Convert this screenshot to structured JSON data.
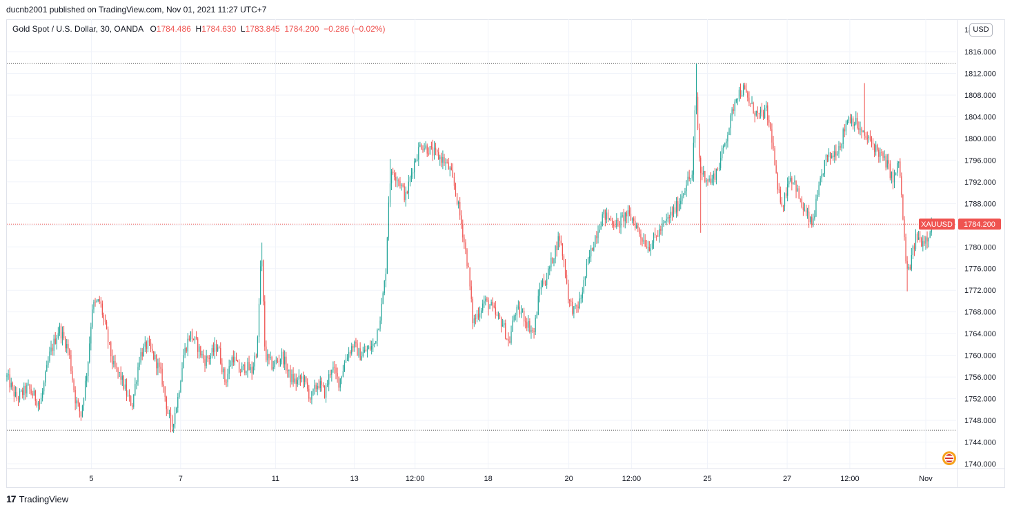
{
  "header": {
    "publisher": "ducnb2001 published on TradingView.com, Nov 01, 2021 11:27 UTC+7"
  },
  "legend": {
    "symbol": "Gold Spot / U.S. Dollar, 30, OANDA",
    "open_label": "O",
    "open": "1784.486",
    "high_label": "H",
    "high": "1784.630",
    "low_label": "L",
    "low": "1783.845",
    "close": "1784.200",
    "change": "−0.286 (−0.02%)"
  },
  "currency_badge": "USD",
  "price_tag": {
    "symbol": "XAUUSD",
    "price": "1784.200"
  },
  "footer": {
    "brand": "TradingView",
    "brand_mark": "17"
  },
  "colors": {
    "up": "#26a69a",
    "down": "#ef5350",
    "grid": "#f0f3fa",
    "axis_text": "#131722"
  },
  "chart_data": {
    "type": "candlestick",
    "title": "Gold Spot / U.S. Dollar, 30, OANDA",
    "ylim": [
      1738,
      1820
    ],
    "y_ticks": [
      1740,
      1744,
      1748,
      1752,
      1756,
      1760,
      1764,
      1768,
      1772,
      1776,
      1780,
      1784,
      1788,
      1792,
      1796,
      1800,
      1804,
      1808,
      1812,
      1816
    ],
    "y_tick_labels": [
      "1740.000",
      "1744.000",
      "1748.000",
      "1752.000",
      "1756.000",
      "1760.000",
      "1764.000",
      "1768.000",
      "1772.000",
      "1776.000",
      "1780.000",
      "1784.000",
      "1788.000",
      "1792.000",
      "1796.000",
      "1800.000",
      "1804.000",
      "1808.000",
      "1812.000",
      "1816.000"
    ],
    "y_top_label": "18",
    "x_ticks": [
      {
        "label": "5",
        "t": 0.089
      },
      {
        "label": "7",
        "t": 0.183
      },
      {
        "label": "11",
        "t": 0.283
      },
      {
        "label": "13",
        "t": 0.366
      },
      {
        "label": "12:00",
        "t": 0.43
      },
      {
        "label": "18",
        "t": 0.507
      },
      {
        "label": "20",
        "t": 0.592
      },
      {
        "label": "12:00",
        "t": 0.658
      },
      {
        "label": "25",
        "t": 0.738
      },
      {
        "label": "27",
        "t": 0.822
      },
      {
        "label": "12:00",
        "t": 0.888
      },
      {
        "label": "Nov",
        "t": 0.968
      }
    ],
    "reference_lines": [
      1813.8,
      1746.2
    ],
    "last_price": 1784.2,
    "price_path": [
      [
        0.0,
        1756
      ],
      [
        0.01,
        1752
      ],
      [
        0.022,
        1754
      ],
      [
        0.035,
        1751
      ],
      [
        0.045,
        1760
      ],
      [
        0.055,
        1765
      ],
      [
        0.065,
        1761
      ],
      [
        0.072,
        1752
      ],
      [
        0.078,
        1749
      ],
      [
        0.085,
        1758
      ],
      [
        0.09,
        1769
      ],
      [
        0.098,
        1770
      ],
      [
        0.105,
        1764
      ],
      [
        0.112,
        1758
      ],
      [
        0.12,
        1756
      ],
      [
        0.128,
        1752
      ],
      [
        0.132,
        1751
      ],
      [
        0.14,
        1760
      ],
      [
        0.148,
        1762
      ],
      [
        0.157,
        1759
      ],
      [
        0.163,
        1756
      ],
      [
        0.17,
        1749
      ],
      [
        0.174,
        1747
      ],
      [
        0.18,
        1752
      ],
      [
        0.186,
        1760
      ],
      [
        0.193,
        1764
      ],
      [
        0.2,
        1762
      ],
      [
        0.208,
        1759
      ],
      [
        0.215,
        1760
      ],
      [
        0.222,
        1762
      ],
      [
        0.23,
        1755
      ],
      [
        0.238,
        1760
      ],
      [
        0.245,
        1757
      ],
      [
        0.252,
        1758
      ],
      [
        0.258,
        1757
      ],
      [
        0.264,
        1762
      ],
      [
        0.268,
        1780
      ],
      [
        0.272,
        1760
      ],
      [
        0.28,
        1758
      ],
      [
        0.29,
        1760
      ],
      [
        0.298,
        1756
      ],
      [
        0.305,
        1755
      ],
      [
        0.312,
        1756
      ],
      [
        0.32,
        1752
      ],
      [
        0.328,
        1755
      ],
      [
        0.335,
        1753
      ],
      [
        0.342,
        1758
      ],
      [
        0.35,
        1755
      ],
      [
        0.358,
        1760
      ],
      [
        0.365,
        1762
      ],
      [
        0.372,
        1760
      ],
      [
        0.38,
        1761
      ],
      [
        0.387,
        1762
      ],
      [
        0.394,
        1768
      ],
      [
        0.399,
        1775
      ],
      [
        0.403,
        1792
      ],
      [
        0.407,
        1794
      ],
      [
        0.414,
        1792
      ],
      [
        0.42,
        1789
      ],
      [
        0.428,
        1795
      ],
      [
        0.436,
        1799
      ],
      [
        0.444,
        1798
      ],
      [
        0.452,
        1797
      ],
      [
        0.46,
        1796
      ],
      [
        0.467,
        1794
      ],
      [
        0.473,
        1790
      ],
      [
        0.48,
        1783
      ],
      [
        0.486,
        1776
      ],
      [
        0.491,
        1766
      ],
      [
        0.497,
        1768
      ],
      [
        0.503,
        1770
      ],
      [
        0.51,
        1769
      ],
      [
        0.516,
        1767
      ],
      [
        0.522,
        1766
      ],
      [
        0.529,
        1762
      ],
      [
        0.535,
        1768
      ],
      [
        0.542,
        1768
      ],
      [
        0.548,
        1766
      ],
      [
        0.555,
        1764
      ],
      [
        0.562,
        1773
      ],
      [
        0.568,
        1774
      ],
      [
        0.575,
        1778
      ],
      [
        0.582,
        1782
      ],
      [
        0.588,
        1776
      ],
      [
        0.592,
        1770
      ],
      [
        0.598,
        1768
      ],
      [
        0.604,
        1770
      ],
      [
        0.612,
        1777
      ],
      [
        0.62,
        1782
      ],
      [
        0.628,
        1786
      ],
      [
        0.636,
        1785
      ],
      [
        0.644,
        1784
      ],
      [
        0.652,
        1786
      ],
      [
        0.66,
        1785
      ],
      [
        0.668,
        1782
      ],
      [
        0.676,
        1780
      ],
      [
        0.684,
        1782
      ],
      [
        0.692,
        1784
      ],
      [
        0.7,
        1786
      ],
      [
        0.708,
        1788
      ],
      [
        0.716,
        1792
      ],
      [
        0.722,
        1793
      ],
      [
        0.726,
        1809
      ],
      [
        0.73,
        1794
      ],
      [
        0.736,
        1793
      ],
      [
        0.742,
        1792
      ],
      [
        0.75,
        1795
      ],
      [
        0.756,
        1799
      ],
      [
        0.762,
        1803
      ],
      [
        0.768,
        1808
      ],
      [
        0.776,
        1809
      ],
      [
        0.784,
        1806
      ],
      [
        0.792,
        1804
      ],
      [
        0.8,
        1805
      ],
      [
        0.806,
        1800
      ],
      [
        0.812,
        1790
      ],
      [
        0.818,
        1788
      ],
      [
        0.824,
        1793
      ],
      [
        0.83,
        1792
      ],
      [
        0.836,
        1788
      ],
      [
        0.842,
        1786
      ],
      [
        0.848,
        1784
      ],
      [
        0.855,
        1790
      ],
      [
        0.862,
        1796
      ],
      [
        0.87,
        1797
      ],
      [
        0.878,
        1799
      ],
      [
        0.886,
        1804
      ],
      [
        0.894,
        1803
      ],
      [
        0.9,
        1801
      ],
      [
        0.906,
        1800
      ],
      [
        0.912,
        1799
      ],
      [
        0.92,
        1797
      ],
      [
        0.928,
        1795
      ],
      [
        0.934,
        1792
      ],
      [
        0.94,
        1796
      ],
      [
        0.944,
        1785
      ],
      [
        0.948,
        1775
      ],
      [
        0.952,
        1777
      ],
      [
        0.958,
        1782
      ],
      [
        0.964,
        1781
      ],
      [
        0.97,
        1782
      ],
      [
        0.974,
        1784.2
      ]
    ],
    "extremes": [
      {
        "t": 0.172,
        "low": 1745.8
      },
      {
        "t": 0.268,
        "high": 1780.8
      },
      {
        "t": 0.403,
        "high": 1796.2
      },
      {
        "t": 0.727,
        "high": 1813.8
      },
      {
        "t": 0.731,
        "low": 1782.6
      },
      {
        "t": 0.903,
        "high": 1810.2
      },
      {
        "t": 0.948,
        "low": 1771.8
      }
    ]
  }
}
